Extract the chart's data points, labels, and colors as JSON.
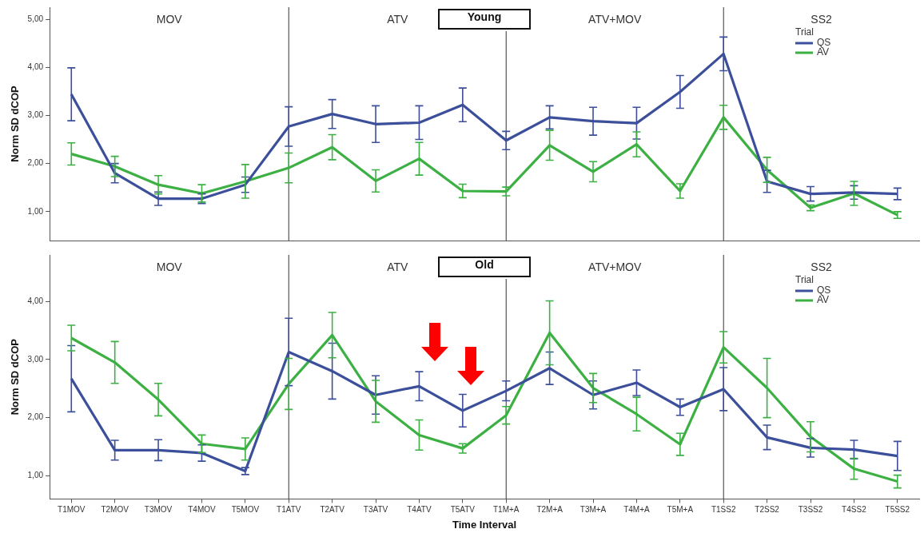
{
  "chart_data": [
    {
      "type": "line",
      "title": "Young",
      "ylabel": "Norm SD dCOP",
      "legend": "top right",
      "legend_title": "Trial",
      "tick_labels": "y",
      "categories": [
        "T1MOV",
        "T2MOV",
        "T3MOV",
        "T4MOV",
        "T5MOV",
        "T1ATV",
        "T2ATV",
        "T3ATV",
        "T4ATV",
        "T5ATV",
        "T1M+A",
        "T2M+A",
        "T3M+A",
        "T4M+A",
        "T5M+A",
        "T1SS2",
        "T2SS2",
        "T3SS2",
        "T4SS2",
        "T5SS2"
      ],
      "series": [
        {
          "name": "QS",
          "color": "#3c4f9a",
          "values": [
            3.44,
            1.8,
            1.27,
            1.27,
            1.56,
            2.77,
            3.03,
            2.82,
            2.85,
            3.22,
            2.48,
            2.96,
            2.88,
            2.84,
            3.49,
            4.28,
            1.63,
            1.37,
            1.4,
            1.37
          ],
          "errors": [
            0.55,
            0.2,
            0.14,
            0.1,
            0.16,
            0.41,
            0.3,
            0.38,
            0.35,
            0.35,
            0.19,
            0.24,
            0.29,
            0.33,
            0.34,
            0.35,
            0.23,
            0.15,
            0.14,
            0.12
          ]
        },
        {
          "name": "AV",
          "color": "#3cb043",
          "values": [
            2.2,
            1.94,
            1.56,
            1.38,
            1.63,
            1.91,
            2.34,
            1.64,
            2.1,
            1.43,
            1.42,
            2.38,
            1.83,
            2.4,
            1.43,
            2.96,
            1.87,
            1.08,
            1.38,
            0.93
          ],
          "errors": [
            0.23,
            0.21,
            0.19,
            0.18,
            0.35,
            0.31,
            0.26,
            0.23,
            0.34,
            0.14,
            0.09,
            0.31,
            0.21,
            0.26,
            0.15,
            0.25,
            0.26,
            0.06,
            0.25,
            0.07
          ]
        }
      ],
      "ylim": [
        0.4,
        5.25
      ],
      "yticks": [
        {
          "value": 1,
          "label": "1,00"
        },
        {
          "value": 2,
          "label": "2,00"
        },
        {
          "value": 3,
          "label": "3,00"
        },
        {
          "value": 4,
          "label": "4,00"
        },
        {
          "value": 5,
          "label": "5,00"
        }
      ],
      "annotations": [
        "MOV",
        "ATV",
        "ATV+MOV",
        "SS2"
      ],
      "ref_lines": [
        {
          "axis": "x",
          "value": "T1ATV"
        },
        {
          "axis": "x",
          "value": "T1M+A"
        },
        {
          "axis": "x",
          "value": "T1SS2"
        }
      ]
    },
    {
      "type": "line",
      "title": "Old",
      "ylabel": "Norm SD dCOP",
      "xlabel": "Time Interval",
      "legend": "top right",
      "legend_title": "Trial",
      "categories": [
        "T1MOV",
        "T2MOV",
        "T3MOV",
        "T4MOV",
        "T5MOV",
        "T1ATV",
        "T2ATV",
        "T3ATV",
        "T4ATV",
        "T5ATV",
        "T1M+A",
        "T2M+A",
        "T3M+A",
        "T4M+A",
        "T5M+A",
        "T1SS2",
        "T2SS2",
        "T3SS2",
        "T4SS2",
        "T5SS2"
      ],
      "series": [
        {
          "name": "QS",
          "color": "#3c4f9a",
          "values": [
            2.67,
            1.44,
            1.44,
            1.39,
            1.08,
            3.13,
            2.8,
            2.39,
            2.54,
            2.12,
            2.46,
            2.85,
            2.39,
            2.6,
            2.18,
            2.49,
            1.66,
            1.48,
            1.45,
            1.34
          ],
          "errors": [
            0.57,
            0.17,
            0.18,
            0.14,
            0.06,
            0.58,
            0.48,
            0.33,
            0.25,
            0.28,
            0.17,
            0.28,
            0.24,
            0.22,
            0.14,
            0.37,
            0.21,
            0.16,
            0.16,
            0.25
          ]
        },
        {
          "name": "AV",
          "color": "#3cb043",
          "values": [
            3.37,
            2.95,
            2.31,
            1.55,
            1.46,
            2.58,
            3.42,
            2.28,
            1.7,
            1.47,
            2.04,
            3.46,
            2.51,
            2.06,
            1.54,
            3.21,
            2.51,
            1.67,
            1.12,
            0.9
          ],
          "errors": [
            0.22,
            0.36,
            0.28,
            0.15,
            0.19,
            0.44,
            0.39,
            0.36,
            0.26,
            0.08,
            0.15,
            0.55,
            0.25,
            0.29,
            0.19,
            0.27,
            0.51,
            0.26,
            0.18,
            0.11
          ]
        }
      ],
      "ylim": [
        0.6,
        4.8
      ],
      "yticks": [
        {
          "value": 1,
          "label": "1,00"
        },
        {
          "value": 2,
          "label": "2,00"
        },
        {
          "value": 3,
          "label": "3,00"
        },
        {
          "value": 4,
          "label": "4,00"
        }
      ],
      "annotations": [
        "MOV",
        "ATV",
        "ATV+MOV",
        "SS2"
      ],
      "ref_lines": [
        {
          "axis": "x",
          "value": "T1ATV"
        },
        {
          "axis": "x",
          "value": "T1M+A"
        },
        {
          "axis": "x",
          "value": "T1SS2"
        }
      ]
    }
  ]
}
